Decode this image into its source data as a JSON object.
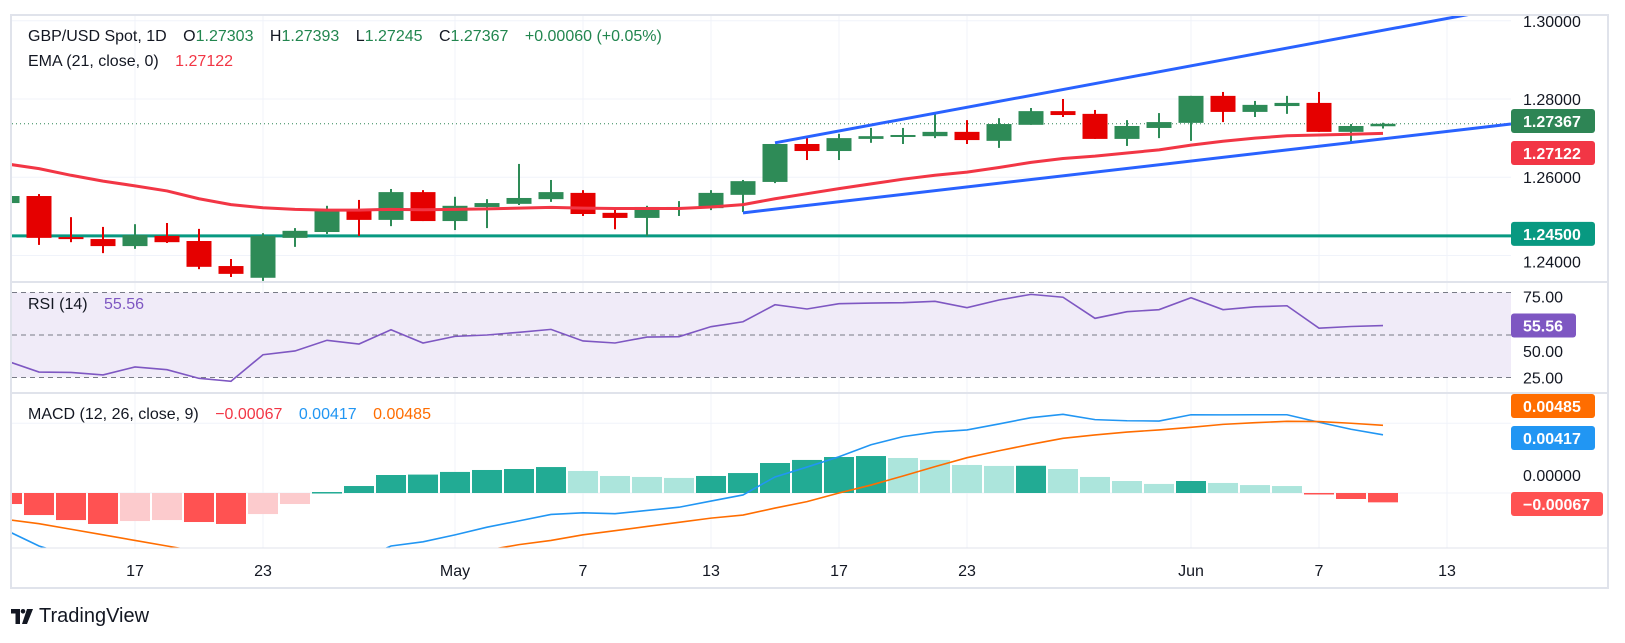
{
  "header": {
    "symbol": "GBP/USD Spot, 1D",
    "o_label": "O",
    "o": "1.27303",
    "h_label": "H",
    "h": "1.27393",
    "l_label": "L",
    "l": "1.27245",
    "c_label": "C",
    "c": "1.27367",
    "change": "+0.00060 (+0.05%)"
  },
  "ema_legend": {
    "label": "EMA (21, close, 0)",
    "value": "1.27122"
  },
  "rsi_legend": {
    "label": "RSI (14)",
    "value": "55.56"
  },
  "macd_legend": {
    "label": "MACD (12, 26, close, 9)",
    "hist": "−0.00067",
    "macd": "0.00417",
    "signal": "0.00485"
  },
  "price_axis": {
    "ticks": [
      "1.30000",
      "1.28000",
      "1.26000",
      "1.24000"
    ],
    "last_price_badge": "1.27367",
    "ema_badge": "1.27122",
    "level_badge": "1.24500"
  },
  "rsi_axis": {
    "ticks": [
      "75.00",
      "50.00",
      "25.00"
    ],
    "badge": "55.56"
  },
  "macd_axis": {
    "ticks": [
      "0.00000"
    ],
    "signal_badge": "0.00485",
    "macd_badge": "0.00417",
    "hist_badge": "−0.00067"
  },
  "time_axis": [
    {
      "label": "17",
      "index": 4
    },
    {
      "label": "23",
      "index": 8
    },
    {
      "label": "May",
      "index": 14
    },
    {
      "label": "7",
      "index": 18
    },
    {
      "label": "13",
      "index": 22
    },
    {
      "label": "17",
      "index": 26
    },
    {
      "label": "23",
      "index": 30
    },
    {
      "label": "Jun",
      "index": 37
    },
    {
      "label": "7",
      "index": 41
    },
    {
      "label": "13",
      "index": 45
    }
  ],
  "brand": "TradingView",
  "colors": {
    "up": "#2e8b57",
    "down": "#e50000",
    "ema": "#f23645",
    "channel": "#2962ff",
    "level": "#089981",
    "rsi": "#7e57c2",
    "rsi_band": "#f0ebf8",
    "macd": "#2196f3",
    "signal": "#ff6d00",
    "hist_up_strong": "#22ab94",
    "hist_up_weak": "#ace5dc",
    "hist_down_strong": "#ff5252",
    "hist_down_weak": "#fccbcd",
    "last_price_badge": "#2e8555",
    "grid": "#f0f3fa",
    "border": "#e0e3eb"
  },
  "chart_data": {
    "type": "candlestick",
    "title": "GBP/USD Spot, 1D",
    "dates": [
      "Apr 11",
      "Apr 12",
      "Apr 15",
      "Apr 16",
      "Apr 17",
      "Apr 18",
      "Apr 19",
      "Apr 22",
      "Apr 23",
      "Apr 24",
      "Apr 25",
      "Apr 26",
      "Apr 29",
      "Apr 30",
      "May 1",
      "May 2",
      "May 3",
      "May 6",
      "May 7",
      "May 8",
      "May 9",
      "May 10",
      "May 13",
      "May 14",
      "May 15",
      "May 16",
      "May 17",
      "May 20",
      "May 21",
      "May 22",
      "May 23",
      "May 24",
      "May 27",
      "May 28",
      "May 29",
      "May 30",
      "May 31",
      "Jun 3",
      "Jun 4",
      "Jun 5",
      "Jun 6",
      "Jun 7",
      "Jun 10",
      "Jun 11"
    ],
    "ohlc": [
      [
        1.2534,
        1.2556,
        1.253,
        1.2552
      ],
      [
        1.2552,
        1.2557,
        1.2427,
        1.2445
      ],
      [
        1.2447,
        1.2498,
        1.2434,
        1.2442
      ],
      [
        1.2442,
        1.2473,
        1.2406,
        1.2424
      ],
      [
        1.2424,
        1.248,
        1.2417,
        1.2452
      ],
      [
        1.245,
        1.2483,
        1.2432,
        1.2434
      ],
      [
        1.2437,
        1.2468,
        1.2365,
        1.2371
      ],
      [
        1.2373,
        1.2391,
        1.2345,
        1.2353
      ],
      [
        1.2343,
        1.2457,
        1.2335,
        1.245
      ],
      [
        1.2445,
        1.247,
        1.2422,
        1.2463
      ],
      [
        1.246,
        1.2527,
        1.2455,
        1.2514
      ],
      [
        1.2514,
        1.2542,
        1.245,
        1.2491
      ],
      [
        1.2491,
        1.257,
        1.2475,
        1.2562
      ],
      [
        1.2562,
        1.2567,
        1.2488,
        1.2488
      ],
      [
        1.2488,
        1.255,
        1.2465,
        1.2527
      ],
      [
        1.2524,
        1.2544,
        1.247,
        1.2534
      ],
      [
        1.2532,
        1.2634,
        1.2529,
        1.2547
      ],
      [
        1.2544,
        1.2593,
        1.2537,
        1.2562
      ],
      [
        1.256,
        1.2567,
        1.2501,
        1.2506
      ],
      [
        1.2509,
        1.2519,
        1.2467,
        1.2496
      ],
      [
        1.2496,
        1.2527,
        1.245,
        1.2524
      ],
      [
        1.2521,
        1.2539,
        1.2501,
        1.2524
      ],
      [
        1.2521,
        1.2567,
        1.2516,
        1.256
      ],
      [
        1.2555,
        1.2593,
        1.2511,
        1.259
      ],
      [
        1.2588,
        1.2685,
        1.2585,
        1.2685
      ],
      [
        1.2685,
        1.27,
        1.2644,
        1.2667
      ],
      [
        1.2667,
        1.2711,
        1.2644,
        1.27
      ],
      [
        1.2698,
        1.2726,
        1.2688,
        1.2705
      ],
      [
        1.2703,
        1.2726,
        1.2685,
        1.2708
      ],
      [
        1.2705,
        1.2764,
        1.27,
        1.2716
      ],
      [
        1.2716,
        1.2746,
        1.2685,
        1.2695
      ],
      [
        1.2693,
        1.2751,
        1.2675,
        1.2736
      ],
      [
        1.2734,
        1.2777,
        1.2734,
        1.2769
      ],
      [
        1.2769,
        1.28,
        1.2754,
        1.2759
      ],
      [
        1.2762,
        1.2772,
        1.2698,
        1.2698
      ],
      [
        1.2698,
        1.2746,
        1.268,
        1.2731
      ],
      [
        1.2726,
        1.2764,
        1.27,
        1.2741
      ],
      [
        1.2739,
        1.2808,
        1.2693,
        1.2808
      ],
      [
        1.2808,
        1.2818,
        1.2741,
        1.2767
      ],
      [
        1.2767,
        1.2795,
        1.2754,
        1.2785
      ],
      [
        1.2782,
        1.2808,
        1.2762,
        1.279
      ],
      [
        1.279,
        1.2818,
        1.2716,
        1.2716
      ],
      [
        1.2716,
        1.2736,
        1.269,
        1.2731
      ],
      [
        1.27303,
        1.27393,
        1.27245,
        1.27367
      ]
    ],
    "ema21": [
      1.2634,
      1.2622,
      1.2605,
      1.259,
      1.2578,
      1.2565,
      1.2545,
      1.253,
      1.2522,
      1.2518,
      1.2516,
      1.2516,
      1.2518,
      1.2517,
      1.2518,
      1.2519,
      1.2521,
      1.2523,
      1.2521,
      1.252,
      1.252,
      1.252,
      1.2524,
      1.253,
      1.2545,
      1.2558,
      1.2571,
      1.2583,
      1.2595,
      1.2605,
      1.2613,
      1.2625,
      1.2638,
      1.2648,
      1.2654,
      1.2662,
      1.267,
      1.2682,
      1.2692,
      1.27,
      1.2706,
      1.2708,
      1.271,
      1.27122
    ],
    "horizontal_level": 1.245,
    "last_price": 1.27367,
    "trendlines": [
      {
        "name": "upper-channel",
        "x0_index": 24,
        "y0": 1.2688,
        "x1_index": 46,
        "y1": 1.3021
      },
      {
        "name": "lower-channel",
        "x0_index": 23,
        "y0": 1.2509,
        "x1_index": 47,
        "y1": 1.2736
      }
    ],
    "ylim": [
      1.233,
      1.3021
    ],
    "rsi": [
      34.7,
      28.2,
      28.0,
      26.5,
      31.2,
      29.6,
      24.5,
      22.8,
      38.4,
      40.6,
      46.9,
      44.7,
      53.1,
      45.3,
      49.2,
      50.0,
      51.6,
      53.3,
      46.5,
      45.3,
      48.8,
      49.0,
      54.9,
      57.8,
      67.8,
      65.3,
      68.4,
      68.8,
      69.0,
      69.8,
      66.1,
      70.6,
      73.9,
      72.2,
      59.8,
      63.7,
      64.9,
      71.9,
      64.9,
      66.6,
      67.2,
      54.0,
      55.0,
      55.56
    ],
    "rsi_levels": [
      75,
      50,
      25
    ],
    "macd": [
      -0.0027,
      -0.0038,
      -0.0045,
      -0.0052,
      -0.0054,
      -0.0057,
      -0.0063,
      -0.0069,
      -0.0065,
      -0.006,
      -0.0052,
      -0.0048,
      -0.0038,
      -0.0035,
      -0.003,
      -0.00245,
      -0.002,
      -0.00154,
      -0.00142,
      -0.00148,
      -0.00125,
      -0.00102,
      -0.00058,
      -0.00014,
      0.00115,
      0.00186,
      0.0026,
      0.00346,
      0.00404,
      0.00437,
      0.00452,
      0.00495,
      0.0054,
      0.00564,
      0.00526,
      0.00518,
      0.00516,
      0.00561,
      0.0056,
      0.00561,
      0.00561,
      0.00507,
      0.00457,
      0.00417
    ],
    "signal": [
      -0.0019,
      -0.0022,
      -0.0026,
      -0.003,
      -0.0034,
      -0.0038,
      -0.0042,
      -0.0047,
      -0.005,
      -0.0052,
      -0.0053,
      -0.0053,
      -0.0051,
      -0.0048,
      -0.0045,
      -0.0041,
      -0.0037,
      -0.0034,
      -0.003,
      -0.0027,
      -0.0024,
      -0.0021,
      -0.0018,
      -0.00158,
      -0.00108,
      -0.00062,
      0.0,
      0.00057,
      0.00122,
      0.00189,
      0.00253,
      0.00303,
      0.00349,
      0.00392,
      0.00416,
      0.00437,
      0.00452,
      0.00471,
      0.00492,
      0.00504,
      0.00514,
      0.00512,
      0.005,
      0.00485
    ],
    "histogram": [
      -0.00079,
      -0.00158,
      -0.00194,
      -0.00222,
      -0.00201,
      -0.00194,
      -0.00208,
      -0.00222,
      -0.00151,
      -0.00079,
      7e-05,
      0.0005,
      0.00129,
      0.00132,
      0.00151,
      0.00165,
      0.00172,
      0.00186,
      0.00158,
      0.00122,
      0.00115,
      0.00108,
      0.00122,
      0.00143,
      0.00215,
      0.00237,
      0.00258,
      0.00265,
      0.00251,
      0.00237,
      0.00201,
      0.00194,
      0.00195,
      0.00172,
      0.00115,
      0.00086,
      0.00065,
      0.00086,
      0.00072,
      0.00057,
      0.0005,
      -0.0001,
      -0.00043,
      -0.00067
    ]
  }
}
